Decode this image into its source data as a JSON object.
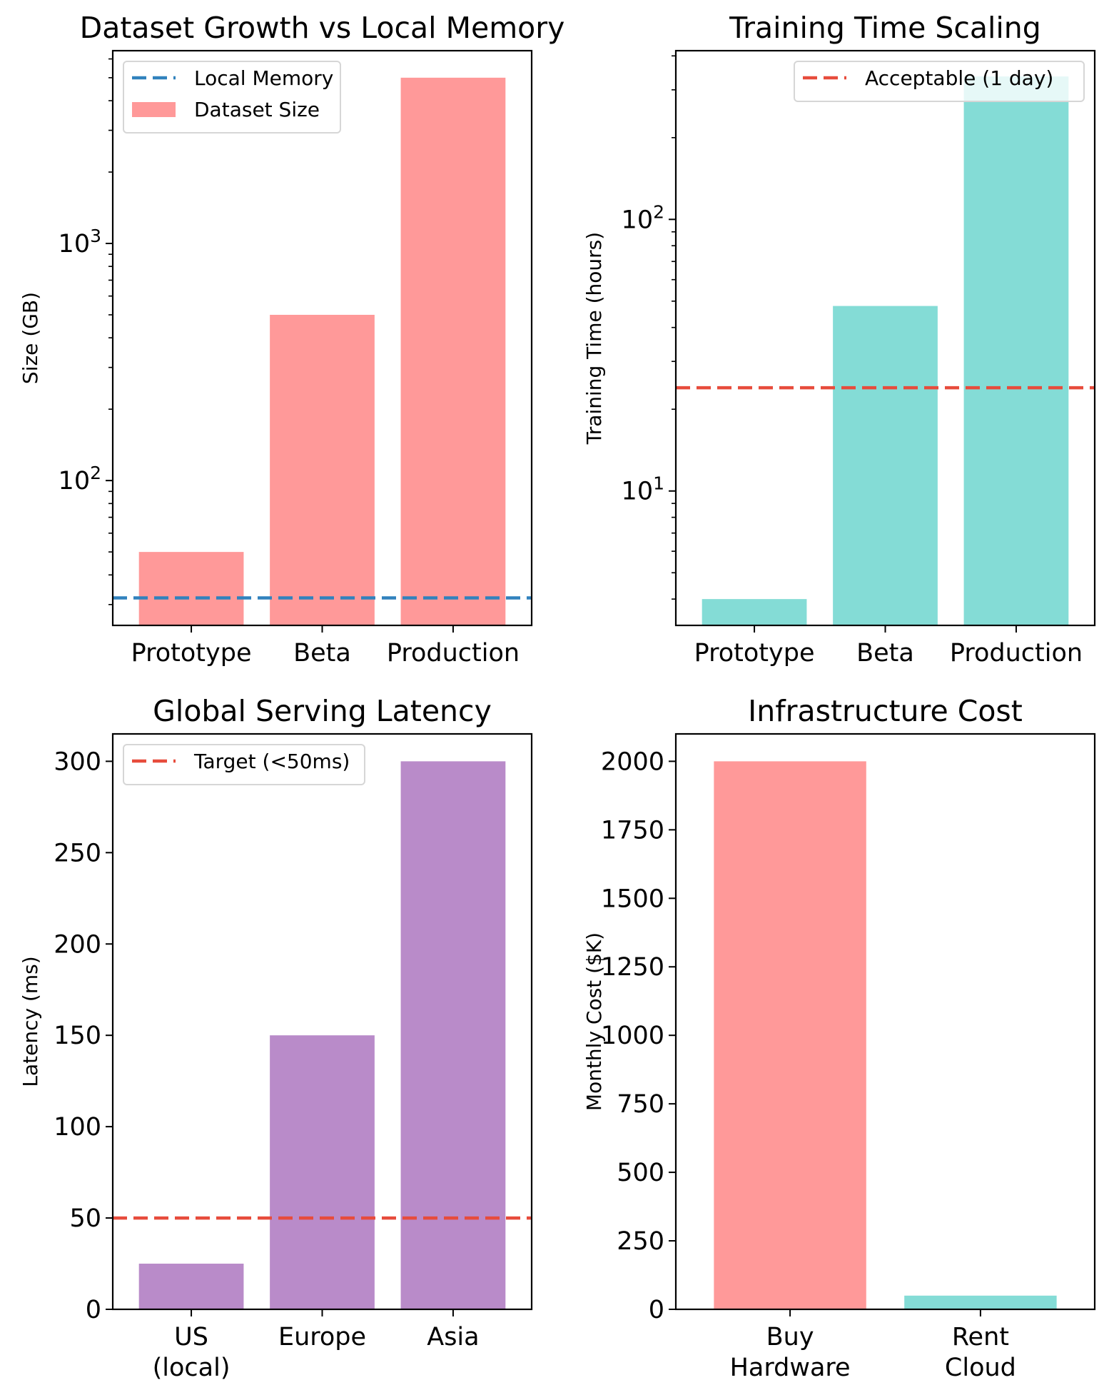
{
  "figure": {
    "background": "#ffffff"
  },
  "chart_data": [
    {
      "id": "dataset-growth",
      "type": "bar",
      "title": "Dataset Growth vs Local Memory",
      "xlabel": "",
      "ylabel": "Size (GB)",
      "yscale": "log",
      "ylim": [
        24.5,
        6500
      ],
      "major_ticks": [
        {
          "value": 100,
          "base": "10",
          "exp": "2"
        },
        {
          "value": 1000,
          "base": "10",
          "exp": "3"
        }
      ],
      "categories": [
        "Prototype",
        "Beta",
        "Production"
      ],
      "values": [
        50,
        500,
        5000
      ],
      "bar_color": "#ff9999",
      "series_name": "Dataset Size",
      "reference_line": {
        "name": "Local Memory",
        "value": 32,
        "color": "#3182bd",
        "style": "dashed"
      },
      "legend": {
        "position": "top-left",
        "entries": [
          {
            "label": "Local Memory",
            "kind": "line",
            "color": "#3182bd"
          },
          {
            "label": "Dataset Size",
            "kind": "patch",
            "color": "#ff9999"
          }
        ]
      },
      "grid": false
    },
    {
      "id": "training-time",
      "type": "bar",
      "title": "Training Time Scaling",
      "xlabel": "",
      "ylabel": "Training Time (hours)",
      "yscale": "log",
      "ylim": [
        3.2,
        418
      ],
      "major_ticks": [
        {
          "value": 10,
          "base": "10",
          "exp": "1"
        },
        {
          "value": 100,
          "base": "10",
          "exp": "2"
        }
      ],
      "categories": [
        "Prototype",
        "Beta",
        "Production"
      ],
      "values": [
        4,
        48,
        336
      ],
      "bar_color": "#84dcd6",
      "series_name": "Training Time",
      "reference_line": {
        "name": "Acceptable (1 day)",
        "value": 24,
        "color": "#e74c3c",
        "style": "dashed"
      },
      "legend": {
        "position": "top-right",
        "entries": [
          {
            "label": "Acceptable (1 day)",
            "kind": "line",
            "color": "#e74c3c"
          }
        ]
      },
      "grid": false
    },
    {
      "id": "serving-latency",
      "type": "bar",
      "title": "Global Serving Latency",
      "xlabel": "",
      "ylabel": "Latency (ms)",
      "yscale": "linear",
      "ylim": [
        0,
        315
      ],
      "yticks": [
        0,
        50,
        100,
        150,
        200,
        250,
        300
      ],
      "categories": [
        "US\n(local)",
        "Europe",
        "Asia"
      ],
      "values": [
        25,
        150,
        300
      ],
      "bar_color": "#b98bc9",
      "series_name": "Latency",
      "reference_line": {
        "name": "Target (<50ms)",
        "value": 50,
        "color": "#e74c3c",
        "style": "dashed"
      },
      "legend": {
        "position": "top-left",
        "entries": [
          {
            "label": "Target (<50ms)",
            "kind": "line",
            "color": "#e74c3c"
          }
        ]
      },
      "grid": false
    },
    {
      "id": "infrastructure-cost",
      "type": "bar",
      "title": "Infrastructure Cost",
      "xlabel": "",
      "ylabel": "Monthly Cost ($K)",
      "yscale": "linear",
      "ylim": [
        0,
        2100
      ],
      "yticks": [
        0,
        250,
        500,
        750,
        1000,
        1250,
        1500,
        1750,
        2000
      ],
      "categories": [
        "Buy\nHardware",
        "Rent\nCloud"
      ],
      "values": [
        2000,
        50
      ],
      "bar_colors": [
        "#ff9999",
        "#84dcd6"
      ],
      "series_name": "Monthly Cost",
      "reference_line": null,
      "legend": null,
      "grid": false
    }
  ]
}
